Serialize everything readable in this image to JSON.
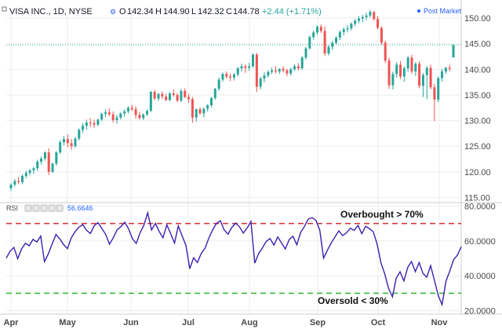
{
  "header": {
    "title": "VISA INC., 1D, NYSE",
    "open_label": "O",
    "open": "142.34",
    "high_label": "H",
    "high": "144.90",
    "low_label": "L",
    "low": "142.32",
    "close_label": "C",
    "close": "144.78",
    "change": "+2.44 (+1.71%)",
    "post_market": "Post Market"
  },
  "rsi_header": {
    "label": "RSI",
    "value": "56.6646"
  },
  "chart_data": [
    {
      "type": "candlestick",
      "name": "VISA INC., 1D, NYSE",
      "ylim": [
        114,
        152
      ],
      "y_ticks": [
        "150.00",
        "145.00",
        "140.00",
        "135.00",
        "130.00",
        "125.00",
        "120.00",
        "115.00"
      ],
      "reference_line": 144.78,
      "x_tick_labels": [
        "Apr",
        "May",
        "Jun",
        "Jul",
        "Aug",
        "Sep",
        "Oct",
        "Nov"
      ],
      "colors": {
        "up": "#26a69a",
        "down": "#ef5350"
      },
      "ohlc": [
        [
          116.8,
          117.8,
          116.3,
          117.5
        ],
        [
          117.5,
          118.6,
          117.1,
          118.2
        ],
        [
          118.2,
          119.0,
          117.6,
          118.0
        ],
        [
          118.0,
          119.5,
          117.6,
          119.2
        ],
        [
          119.2,
          120.2,
          118.8,
          119.8
        ],
        [
          119.8,
          120.6,
          119.3,
          120.3
        ],
        [
          120.3,
          121.0,
          119.6,
          120.7
        ],
        [
          120.7,
          122.4,
          120.2,
          122.0
        ],
        [
          122.0,
          123.0,
          121.4,
          122.6
        ],
        [
          122.6,
          124.0,
          122.2,
          123.8
        ],
        [
          123.8,
          124.6,
          119.4,
          120.0
        ],
        [
          120.0,
          121.8,
          119.8,
          121.6
        ],
        [
          121.6,
          124.1,
          121.2,
          123.8
        ],
        [
          123.8,
          126.2,
          123.5,
          125.8
        ],
        [
          125.8,
          127.0,
          125.2,
          126.4
        ],
        [
          126.4,
          127.3,
          124.8,
          125.6
        ],
        [
          125.6,
          126.4,
          124.3,
          125.0
        ],
        [
          125.0,
          126.8,
          124.7,
          126.5
        ],
        [
          126.5,
          128.5,
          126.1,
          128.2
        ],
        [
          128.2,
          129.5,
          127.6,
          129.0
        ],
        [
          129.0,
          130.2,
          128.2,
          129.6
        ],
        [
          129.6,
          130.5,
          128.8,
          129.5
        ],
        [
          129.5,
          130.2,
          128.6,
          129.2
        ],
        [
          129.2,
          130.4,
          128.9,
          130.2
        ],
        [
          130.2,
          131.6,
          129.9,
          131.3
        ],
        [
          131.3,
          132.2,
          130.7,
          131.6
        ],
        [
          131.6,
          132.4,
          130.9,
          131.2
        ],
        [
          131.2,
          131.8,
          129.6,
          130.1
        ],
        [
          130.1,
          131.1,
          129.4,
          130.6
        ],
        [
          130.6,
          131.6,
          130.2,
          131.4
        ],
        [
          131.4,
          132.2,
          130.8,
          131.8
        ],
        [
          131.8,
          132.8,
          131.4,
          132.5
        ],
        [
          132.5,
          133.1,
          131.9,
          132.2
        ],
        [
          132.2,
          132.8,
          130.4,
          131.1
        ],
        [
          131.1,
          131.7,
          130.2,
          130.5
        ],
        [
          130.5,
          131.4,
          130.1,
          131.2
        ],
        [
          131.2,
          132.2,
          130.9,
          131.9
        ],
        [
          131.9,
          135.8,
          131.7,
          135.6
        ],
        [
          135.6,
          136.0,
          134.0,
          134.3
        ],
        [
          134.3,
          135.4,
          133.8,
          135.2
        ],
        [
          135.2,
          135.7,
          134.2,
          134.7
        ],
        [
          134.7,
          135.2,
          133.8,
          134.0
        ],
        [
          134.0,
          135.6,
          133.8,
          135.3
        ],
        [
          135.3,
          136.1,
          134.7,
          135.0
        ],
        [
          135.0,
          135.4,
          133.6,
          133.9
        ],
        [
          133.9,
          136.2,
          133.6,
          135.8
        ],
        [
          135.8,
          136.3,
          134.4,
          134.6
        ],
        [
          134.6,
          135.2,
          133.5,
          134.2
        ],
        [
          134.2,
          134.6,
          129.6,
          130.6
        ],
        [
          130.6,
          132.4,
          129.8,
          132.2
        ],
        [
          132.2,
          132.6,
          131.2,
          131.4
        ],
        [
          131.4,
          132.6,
          130.6,
          132.3
        ],
        [
          132.3,
          133.2,
          131.8,
          133.0
        ],
        [
          133.0,
          134.6,
          132.6,
          134.4
        ],
        [
          134.4,
          136.4,
          134.1,
          136.2
        ],
        [
          136.2,
          138.4,
          135.8,
          138.0
        ],
        [
          138.0,
          139.4,
          137.6,
          139.1
        ],
        [
          139.1,
          139.6,
          138.2,
          138.6
        ],
        [
          138.6,
          139.2,
          137.7,
          138.4
        ],
        [
          138.4,
          139.3,
          137.8,
          139.0
        ],
        [
          139.0,
          140.5,
          138.6,
          140.2
        ],
        [
          140.2,
          141.1,
          139.6,
          140.6
        ],
        [
          140.6,
          141.0,
          139.3,
          140.3
        ],
        [
          140.3,
          141.3,
          139.7,
          140.6
        ],
        [
          140.6,
          143.1,
          140.3,
          142.9
        ],
        [
          142.9,
          143.2,
          135.6,
          136.6
        ],
        [
          136.6,
          138.6,
          136.1,
          138.2
        ],
        [
          138.2,
          139.4,
          137.5,
          138.8
        ],
        [
          138.8,
          139.8,
          138.4,
          139.5
        ],
        [
          139.5,
          140.4,
          139.1,
          139.8
        ],
        [
          139.8,
          140.6,
          139.2,
          139.6
        ],
        [
          139.6,
          140.2,
          139.1,
          140.1
        ],
        [
          140.1,
          140.6,
          139.4,
          139.8
        ],
        [
          139.8,
          140.1,
          138.7,
          139.2
        ],
        [
          139.2,
          140.3,
          138.8,
          140.0
        ],
        [
          140.0,
          141.0,
          139.7,
          140.6
        ],
        [
          140.6,
          141.2,
          139.8,
          140.2
        ],
        [
          140.2,
          142.6,
          139.9,
          142.3
        ],
        [
          142.3,
          144.4,
          141.9,
          144.1
        ],
        [
          144.1,
          146.6,
          143.9,
          146.3
        ],
        [
          146.3,
          147.6,
          145.8,
          147.2
        ],
        [
          147.2,
          148.6,
          146.8,
          148.3
        ],
        [
          148.3,
          148.8,
          147.1,
          147.5
        ],
        [
          147.5,
          148.4,
          142.6,
          143.1
        ],
        [
          143.1,
          144.7,
          142.7,
          144.4
        ],
        [
          144.4,
          145.6,
          143.8,
          145.2
        ],
        [
          145.2,
          146.5,
          144.8,
          146.2
        ],
        [
          146.2,
          147.6,
          145.7,
          147.3
        ],
        [
          147.3,
          148.2,
          146.6,
          147.8
        ],
        [
          147.8,
          148.6,
          147.2,
          148.0
        ],
        [
          148.0,
          149.2,
          147.6,
          148.9
        ],
        [
          148.9,
          149.8,
          148.4,
          149.5
        ],
        [
          149.5,
          150.4,
          149.0,
          149.9
        ],
        [
          149.9,
          150.6,
          149.2,
          150.2
        ],
        [
          150.2,
          151.0,
          149.6,
          150.5
        ],
        [
          150.5,
          151.6,
          150.1,
          151.2
        ],
        [
          151.2,
          151.4,
          149.5,
          149.8
        ],
        [
          149.8,
          150.4,
          147.8,
          148.1
        ],
        [
          148.1,
          148.4,
          144.8,
          145.2
        ],
        [
          145.2,
          145.6,
          141.2,
          141.7
        ],
        [
          141.7,
          142.3,
          136.2,
          136.9
        ],
        [
          136.9,
          139.6,
          136.1,
          139.1
        ],
        [
          139.1,
          141.4,
          138.4,
          140.9
        ],
        [
          140.9,
          141.6,
          138.1,
          138.6
        ],
        [
          138.6,
          140.6,
          137.6,
          140.2
        ],
        [
          140.2,
          142.6,
          139.5,
          142.3
        ],
        [
          142.3,
          142.8,
          139.1,
          139.6
        ],
        [
          139.6,
          141.4,
          138.7,
          141.1
        ],
        [
          141.1,
          141.6,
          136.3,
          136.8
        ],
        [
          136.8,
          139.3,
          134.6,
          138.9
        ],
        [
          138.9,
          140.6,
          134.2,
          140.3
        ],
        [
          140.3,
          140.9,
          136.1,
          136.5
        ],
        [
          136.5,
          137.2,
          129.9,
          134.1
        ],
        [
          134.1,
          138.6,
          133.6,
          138.3
        ],
        [
          138.3,
          140.1,
          137.6,
          139.6
        ],
        [
          139.6,
          140.5,
          139.1,
          140.3
        ],
        [
          140.3,
          140.9,
          139.6,
          140.1
        ],
        [
          142.34,
          144.9,
          142.32,
          144.78
        ]
      ]
    },
    {
      "type": "line",
      "name": "RSI",
      "ylim": [
        18,
        82
      ],
      "y_ticks": [
        "80.0000",
        "60.0000",
        "40.0000",
        "20.0000"
      ],
      "levels": [
        {
          "value": 70,
          "label": "Overbought > 70%",
          "color": "#d32f2f"
        },
        {
          "value": 30,
          "label": "Oversold < 30%",
          "color": "#2eb82e"
        }
      ],
      "line_color": "#3d1fb0",
      "values": [
        50.2,
        54.1,
        56.3,
        49.8,
        55.4,
        58.7,
        57.2,
        60.9,
        59.4,
        62.8,
        48.1,
        52.6,
        58.3,
        63.7,
        61.2,
        57.9,
        55.6,
        61.8,
        65.3,
        67.9,
        69.4,
        66.1,
        64.3,
        68.7,
        70.5,
        67.2,
        63.8,
        58.1,
        61.9,
        66.4,
        68.2,
        70.8,
        66.9,
        61.3,
        58.6,
        64.7,
        69.1,
        76.2,
        66.3,
        70.1,
        65.4,
        61.8,
        69.3,
        64.2,
        58.8,
        68.6,
        62.9,
        57.4,
        44.1,
        50.3,
        47.6,
        52.9,
        55.8,
        61.7,
        66.4,
        70.2,
        71.6,
        66.3,
        63.9,
        67.8,
        70.3,
        68.1,
        64.5,
        67.4,
        71.2,
        47.3,
        52.8,
        56.1,
        59.7,
        61.4,
        57.6,
        62.3,
        58.9,
        55.4,
        60.8,
        62.7,
        57.8,
        64.9,
        68.4,
        72.6,
        73.4,
        71.8,
        66.2,
        50.2,
        54.7,
        58.9,
        62.4,
        65.8,
        63.1,
        64.7,
        67.3,
        66.1,
        68.9,
        64.2,
        68.4,
        67.1,
        65.3,
        58.2,
        47.6,
        41.1,
        32.8,
        27.9,
        38.6,
        42.3,
        37.1,
        44.8,
        48.2,
        42.4,
        47.6,
        41.3,
        39.2,
        45.8,
        37.4,
        28.6,
        23.4,
        36.9,
        42.7,
        49.3,
        51.8,
        56.7
      ]
    }
  ]
}
